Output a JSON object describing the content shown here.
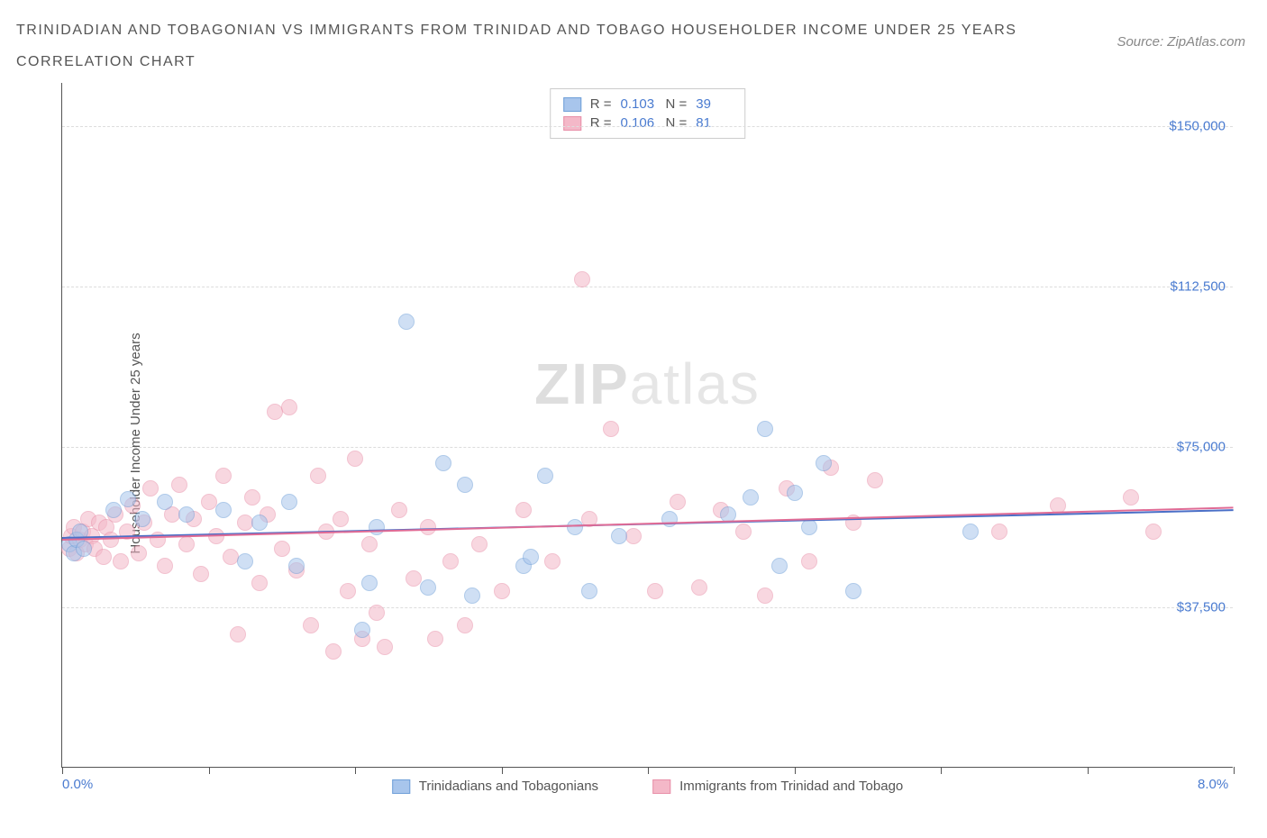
{
  "title_line1": "TRINIDADIAN AND TOBAGONIAN VS IMMIGRANTS FROM TRINIDAD AND TOBAGO HOUSEHOLDER INCOME UNDER 25 YEARS",
  "title_line2": "CORRELATION CHART",
  "source_label": "Source: ZipAtlas.com",
  "ylabel": "Householder Income Under 25 years",
  "watermark_bold": "ZIP",
  "watermark_light": "atlas",
  "chart": {
    "type": "scatter",
    "xlim": [
      0,
      8
    ],
    "ylim": [
      0,
      160000
    ],
    "xtick_positions": [
      0,
      1,
      2,
      3,
      4,
      5,
      6,
      7,
      8
    ],
    "xtick_labels_shown": {
      "0": "0.0%",
      "8": "8.0%"
    },
    "ytick_positions": [
      37500,
      75000,
      112500,
      150000
    ],
    "ytick_labels": [
      "$37,500",
      "$75,000",
      "$112,500",
      "$150,000"
    ],
    "background_color": "#ffffff",
    "grid_color": "#dddddd",
    "axis_color": "#555555",
    "label_color": "#4a7bd0",
    "marker_radius": 9,
    "marker_opacity": 0.55,
    "series": [
      {
        "name": "Trinidadians and Tobagonians",
        "color_fill": "#a8c5ec",
        "color_stroke": "#6f9fd8",
        "trend_color": "#4a6fc7",
        "R": "0.103",
        "N": "39",
        "trend": {
          "x1": 0.0,
          "y1": 54000,
          "x2": 8.0,
          "y2": 60500
        },
        "points": [
          [
            0.05,
            52000
          ],
          [
            0.08,
            50000
          ],
          [
            0.1,
            53000
          ],
          [
            0.12,
            55000
          ],
          [
            0.15,
            51000
          ],
          [
            0.35,
            60000
          ],
          [
            0.45,
            62500
          ],
          [
            0.55,
            58000
          ],
          [
            0.7,
            62000
          ],
          [
            0.85,
            59000
          ],
          [
            1.1,
            60000
          ],
          [
            1.25,
            48000
          ],
          [
            1.35,
            57000
          ],
          [
            1.55,
            62000
          ],
          [
            1.6,
            47000
          ],
          [
            2.05,
            32000
          ],
          [
            2.1,
            43000
          ],
          [
            2.15,
            56000
          ],
          [
            2.35,
            104000
          ],
          [
            2.5,
            42000
          ],
          [
            2.6,
            71000
          ],
          [
            2.75,
            66000
          ],
          [
            2.8,
            40000
          ],
          [
            3.15,
            47000
          ],
          [
            3.2,
            49000
          ],
          [
            3.3,
            68000
          ],
          [
            3.5,
            56000
          ],
          [
            3.6,
            41000
          ],
          [
            3.8,
            54000
          ],
          [
            4.15,
            58000
          ],
          [
            4.55,
            59000
          ],
          [
            4.7,
            63000
          ],
          [
            4.8,
            79000
          ],
          [
            4.9,
            47000
          ],
          [
            5.0,
            64000
          ],
          [
            5.1,
            56000
          ],
          [
            5.2,
            71000
          ],
          [
            5.4,
            41000
          ],
          [
            6.2,
            55000
          ]
        ]
      },
      {
        "name": "Immigrants from Trinidad and Tobago",
        "color_fill": "#f4b8c8",
        "color_stroke": "#e88fa8",
        "trend_color": "#e06b95",
        "R": "0.106",
        "N": "81",
        "trend": {
          "x1": 0.0,
          "y1": 53500,
          "x2": 8.0,
          "y2": 61000
        },
        "points": [
          [
            0.05,
            51000
          ],
          [
            0.06,
            54000
          ],
          [
            0.08,
            56000
          ],
          [
            0.1,
            50000
          ],
          [
            0.12,
            53000
          ],
          [
            0.14,
            55000
          ],
          [
            0.16,
            52000
          ],
          [
            0.18,
            58000
          ],
          [
            0.2,
            54000
          ],
          [
            0.22,
            51000
          ],
          [
            0.25,
            57000
          ],
          [
            0.28,
            49000
          ],
          [
            0.3,
            56000
          ],
          [
            0.33,
            53000
          ],
          [
            0.36,
            59000
          ],
          [
            0.4,
            48000
          ],
          [
            0.44,
            55000
          ],
          [
            0.48,
            61000
          ],
          [
            0.52,
            50000
          ],
          [
            0.56,
            57000
          ],
          [
            0.6,
            65000
          ],
          [
            0.65,
            53000
          ],
          [
            0.7,
            47000
          ],
          [
            0.75,
            59000
          ],
          [
            0.8,
            66000
          ],
          [
            0.85,
            52000
          ],
          [
            0.9,
            58000
          ],
          [
            0.95,
            45000
          ],
          [
            1.0,
            62000
          ],
          [
            1.05,
            54000
          ],
          [
            1.1,
            68000
          ],
          [
            1.15,
            49000
          ],
          [
            1.2,
            31000
          ],
          [
            1.25,
            57000
          ],
          [
            1.3,
            63000
          ],
          [
            1.35,
            43000
          ],
          [
            1.4,
            59000
          ],
          [
            1.45,
            83000
          ],
          [
            1.5,
            51000
          ],
          [
            1.55,
            84000
          ],
          [
            1.6,
            46000
          ],
          [
            1.7,
            33000
          ],
          [
            1.75,
            68000
          ],
          [
            1.8,
            55000
          ],
          [
            1.85,
            27000
          ],
          [
            1.9,
            58000
          ],
          [
            1.95,
            41000
          ],
          [
            2.0,
            72000
          ],
          [
            2.05,
            30000
          ],
          [
            2.1,
            52000
          ],
          [
            2.15,
            36000
          ],
          [
            2.2,
            28000
          ],
          [
            2.3,
            60000
          ],
          [
            2.4,
            44000
          ],
          [
            2.5,
            56000
          ],
          [
            2.55,
            30000
          ],
          [
            2.65,
            48000
          ],
          [
            2.75,
            33000
          ],
          [
            2.85,
            52000
          ],
          [
            3.0,
            41000
          ],
          [
            3.15,
            60000
          ],
          [
            3.35,
            48000
          ],
          [
            3.55,
            114000
          ],
          [
            3.6,
            58000
          ],
          [
            3.75,
            79000
          ],
          [
            3.9,
            54000
          ],
          [
            4.05,
            41000
          ],
          [
            4.2,
            62000
          ],
          [
            4.35,
            42000
          ],
          [
            4.5,
            60000
          ],
          [
            4.65,
            55000
          ],
          [
            4.8,
            40000
          ],
          [
            4.95,
            65000
          ],
          [
            5.1,
            48000
          ],
          [
            5.25,
            70000
          ],
          [
            5.4,
            57000
          ],
          [
            5.55,
            67000
          ],
          [
            6.4,
            55000
          ],
          [
            6.8,
            61000
          ],
          [
            7.3,
            63000
          ],
          [
            7.45,
            55000
          ]
        ]
      }
    ],
    "legend_bottom": [
      "Trinidadians and Tobagonians",
      "Immigrants from Trinidad and Tobago"
    ],
    "legend_top_labels": {
      "R": "R =",
      "N": "N ="
    }
  }
}
